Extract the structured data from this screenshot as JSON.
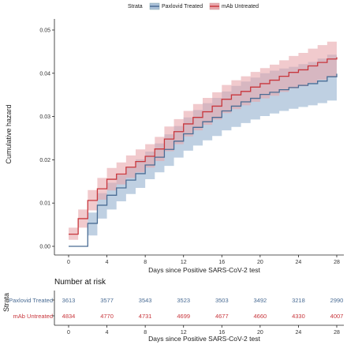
{
  "legend": {
    "title": "Strata",
    "items": [
      {
        "label": "Paxlovid Treated",
        "color": "#4A6C94"
      },
      {
        "label": "mAb Untreated",
        "color": "#C8373D"
      }
    ]
  },
  "chart_data": {
    "type": "line",
    "step": true,
    "xlabel": "Days since Positive SARS-CoV-2 test",
    "ylabel": "Cumulative hazard",
    "xlim": [
      0,
      28
    ],
    "ylim": [
      0,
      0.05
    ],
    "xticks": [
      0,
      4,
      8,
      12,
      16,
      20,
      24,
      28
    ],
    "yticks": [
      0.0,
      0.01,
      0.02,
      0.03,
      0.04,
      0.05
    ],
    "ytick_labels": [
      "0.00",
      "0.01",
      "0.02",
      "0.03",
      "0.04",
      "0.05"
    ],
    "grid": false,
    "legend_position": "top",
    "series": [
      {
        "name": "Paxlovid Treated",
        "color": "#4A6C94",
        "band_color": "#A9C0D8",
        "x": [
          0,
          2,
          3,
          4,
          5,
          6,
          7,
          8,
          9,
          10,
          11,
          12,
          13,
          14,
          15,
          16,
          17,
          18,
          19,
          20,
          21,
          22,
          23,
          24,
          25,
          26,
          27,
          28
        ],
        "y": [
          0.0,
          0.0053,
          0.0095,
          0.0118,
          0.0135,
          0.0153,
          0.0168,
          0.0188,
          0.0206,
          0.0224,
          0.0243,
          0.026,
          0.0275,
          0.0288,
          0.0298,
          0.0313,
          0.0324,
          0.0334,
          0.0342,
          0.0351,
          0.0356,
          0.0362,
          0.0367,
          0.0372,
          0.0376,
          0.0382,
          0.0392,
          0.0399
        ],
        "lower": [
          0.0,
          0.0025,
          0.0064,
          0.0085,
          0.0104,
          0.0121,
          0.0135,
          0.0155,
          0.0171,
          0.0186,
          0.0205,
          0.0221,
          0.0233,
          0.0245,
          0.0255,
          0.0268,
          0.0276,
          0.0285,
          0.0293,
          0.0301,
          0.0307,
          0.0313,
          0.0318,
          0.0322,
          0.0326,
          0.0331,
          0.0337,
          0.0343
        ],
        "upper": [
          0.0,
          0.0078,
          0.0123,
          0.0147,
          0.0165,
          0.0183,
          0.0201,
          0.0219,
          0.0238,
          0.0259,
          0.0278,
          0.0298,
          0.0315,
          0.0331,
          0.0343,
          0.0358,
          0.0371,
          0.0381,
          0.039,
          0.04,
          0.0406,
          0.0411,
          0.0415,
          0.0421,
          0.0426,
          0.0434,
          0.0443,
          0.0452
        ]
      },
      {
        "name": "mAb Untreated",
        "color": "#C8373D",
        "band_color": "#E8A7AC",
        "x": [
          0,
          1,
          2,
          3,
          4,
          5,
          6,
          7,
          8,
          9,
          10,
          11,
          12,
          13,
          14,
          15,
          16,
          17,
          18,
          19,
          20,
          21,
          22,
          23,
          24,
          25,
          26,
          27,
          28
        ],
        "y": [
          0.0028,
          0.0064,
          0.0106,
          0.0133,
          0.0155,
          0.0167,
          0.0183,
          0.0196,
          0.0208,
          0.0225,
          0.0248,
          0.0265,
          0.0283,
          0.0298,
          0.0311,
          0.0324,
          0.034,
          0.035,
          0.0358,
          0.0368,
          0.0376,
          0.0384,
          0.0393,
          0.0402,
          0.0408,
          0.0417,
          0.0425,
          0.0433,
          0.0437
        ],
        "lower": [
          0.0015,
          0.0043,
          0.0083,
          0.0108,
          0.0129,
          0.0143,
          0.0158,
          0.0171,
          0.0182,
          0.0197,
          0.022,
          0.0236,
          0.0254,
          0.0268,
          0.0281,
          0.0293,
          0.0308,
          0.0317,
          0.0326,
          0.0334,
          0.0342,
          0.0348,
          0.0357,
          0.0365,
          0.037,
          0.0378,
          0.0385,
          0.0391,
          0.0395
        ],
        "upper": [
          0.0043,
          0.0085,
          0.013,
          0.0158,
          0.0181,
          0.0194,
          0.021,
          0.0224,
          0.0236,
          0.0253,
          0.0277,
          0.0294,
          0.0313,
          0.0329,
          0.0343,
          0.0356,
          0.0373,
          0.0384,
          0.0393,
          0.0403,
          0.0412,
          0.042,
          0.043,
          0.044,
          0.0447,
          0.0457,
          0.0465,
          0.0473,
          0.0478
        ]
      }
    ]
  },
  "risk_table": {
    "title": "Number at risk",
    "ylabel": "Strata",
    "xlabel": "Days since Positive SARS-CoV-2 test",
    "days": [
      0,
      4,
      8,
      12,
      16,
      20,
      24,
      28
    ],
    "rows": [
      {
        "label": "Paxlovid Treated",
        "color": "#4A6C94",
        "values": [
          "3613",
          "3577",
          "3543",
          "3523",
          "3503",
          "3492",
          "3218",
          "2990"
        ]
      },
      {
        "label": "mAb Untreated",
        "color": "#C8373D",
        "values": [
          "4834",
          "4770",
          "4731",
          "4699",
          "4677",
          "4660",
          "4330",
          "4007"
        ]
      }
    ]
  }
}
